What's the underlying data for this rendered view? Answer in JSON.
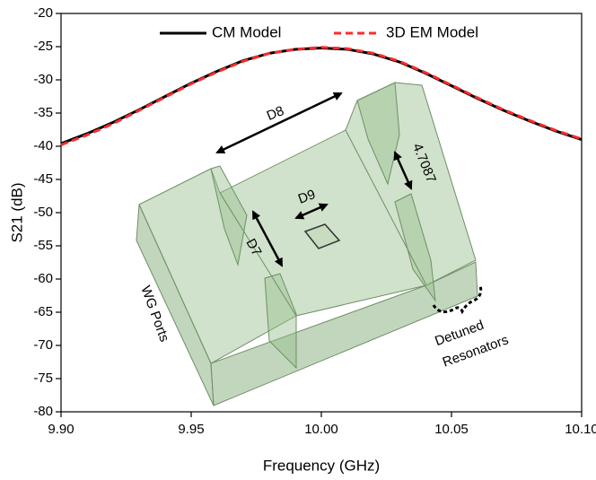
{
  "chart_data": {
    "type": "line",
    "x_label": "Frequency (GHz)",
    "y_label": "S21 (dB)",
    "x": [
      9.9,
      9.91,
      9.92,
      9.93,
      9.94,
      9.95,
      9.96,
      9.97,
      9.98,
      9.99,
      10.0,
      10.01,
      10.02,
      10.03,
      10.04,
      10.05,
      10.06,
      10.07,
      10.08,
      10.09,
      10.1
    ],
    "series": [
      {
        "name": "CM Model",
        "color": "#000000",
        "dash": false,
        "values": [
          -39.6,
          -38.1,
          -36.4,
          -34.5,
          -32.5,
          -30.5,
          -28.7,
          -27.1,
          -26.0,
          -25.4,
          -25.2,
          -25.4,
          -26.1,
          -27.3,
          -29.0,
          -30.9,
          -32.8,
          -34.6,
          -36.2,
          -37.7,
          -39.0
        ]
      },
      {
        "name": "3D EM Model",
        "color": "#ff2a2a",
        "dash": true,
        "values": [
          -39.8,
          -38.3,
          -36.6,
          -34.6,
          -32.6,
          -30.6,
          -28.8,
          -27.2,
          -26.0,
          -25.4,
          -25.1,
          -25.3,
          -26.0,
          -27.2,
          -28.9,
          -30.8,
          -32.7,
          -34.5,
          -36.1,
          -37.6,
          -38.9
        ]
      }
    ],
    "xlim": [
      9.9,
      10.1
    ],
    "xticks": [
      {
        "value": 9.9,
        "label": "9.90"
      },
      9.95,
      {
        "value": 10.0,
        "label": "10.00"
      },
      10.05,
      {
        "value": 10.1,
        "label": "10.10"
      }
    ],
    "ylim": [
      -80,
      -20
    ],
    "yticks": [
      -80,
      -75,
      -70,
      -65,
      -60,
      -55,
      -50,
      -45,
      -40,
      -35,
      -30,
      -25,
      -20
    ],
    "legend": "top",
    "annotations": [
      "D8",
      "D9",
      "D7",
      "4.7087",
      "WG Ports",
      "Detuned",
      "Resonators"
    ]
  }
}
